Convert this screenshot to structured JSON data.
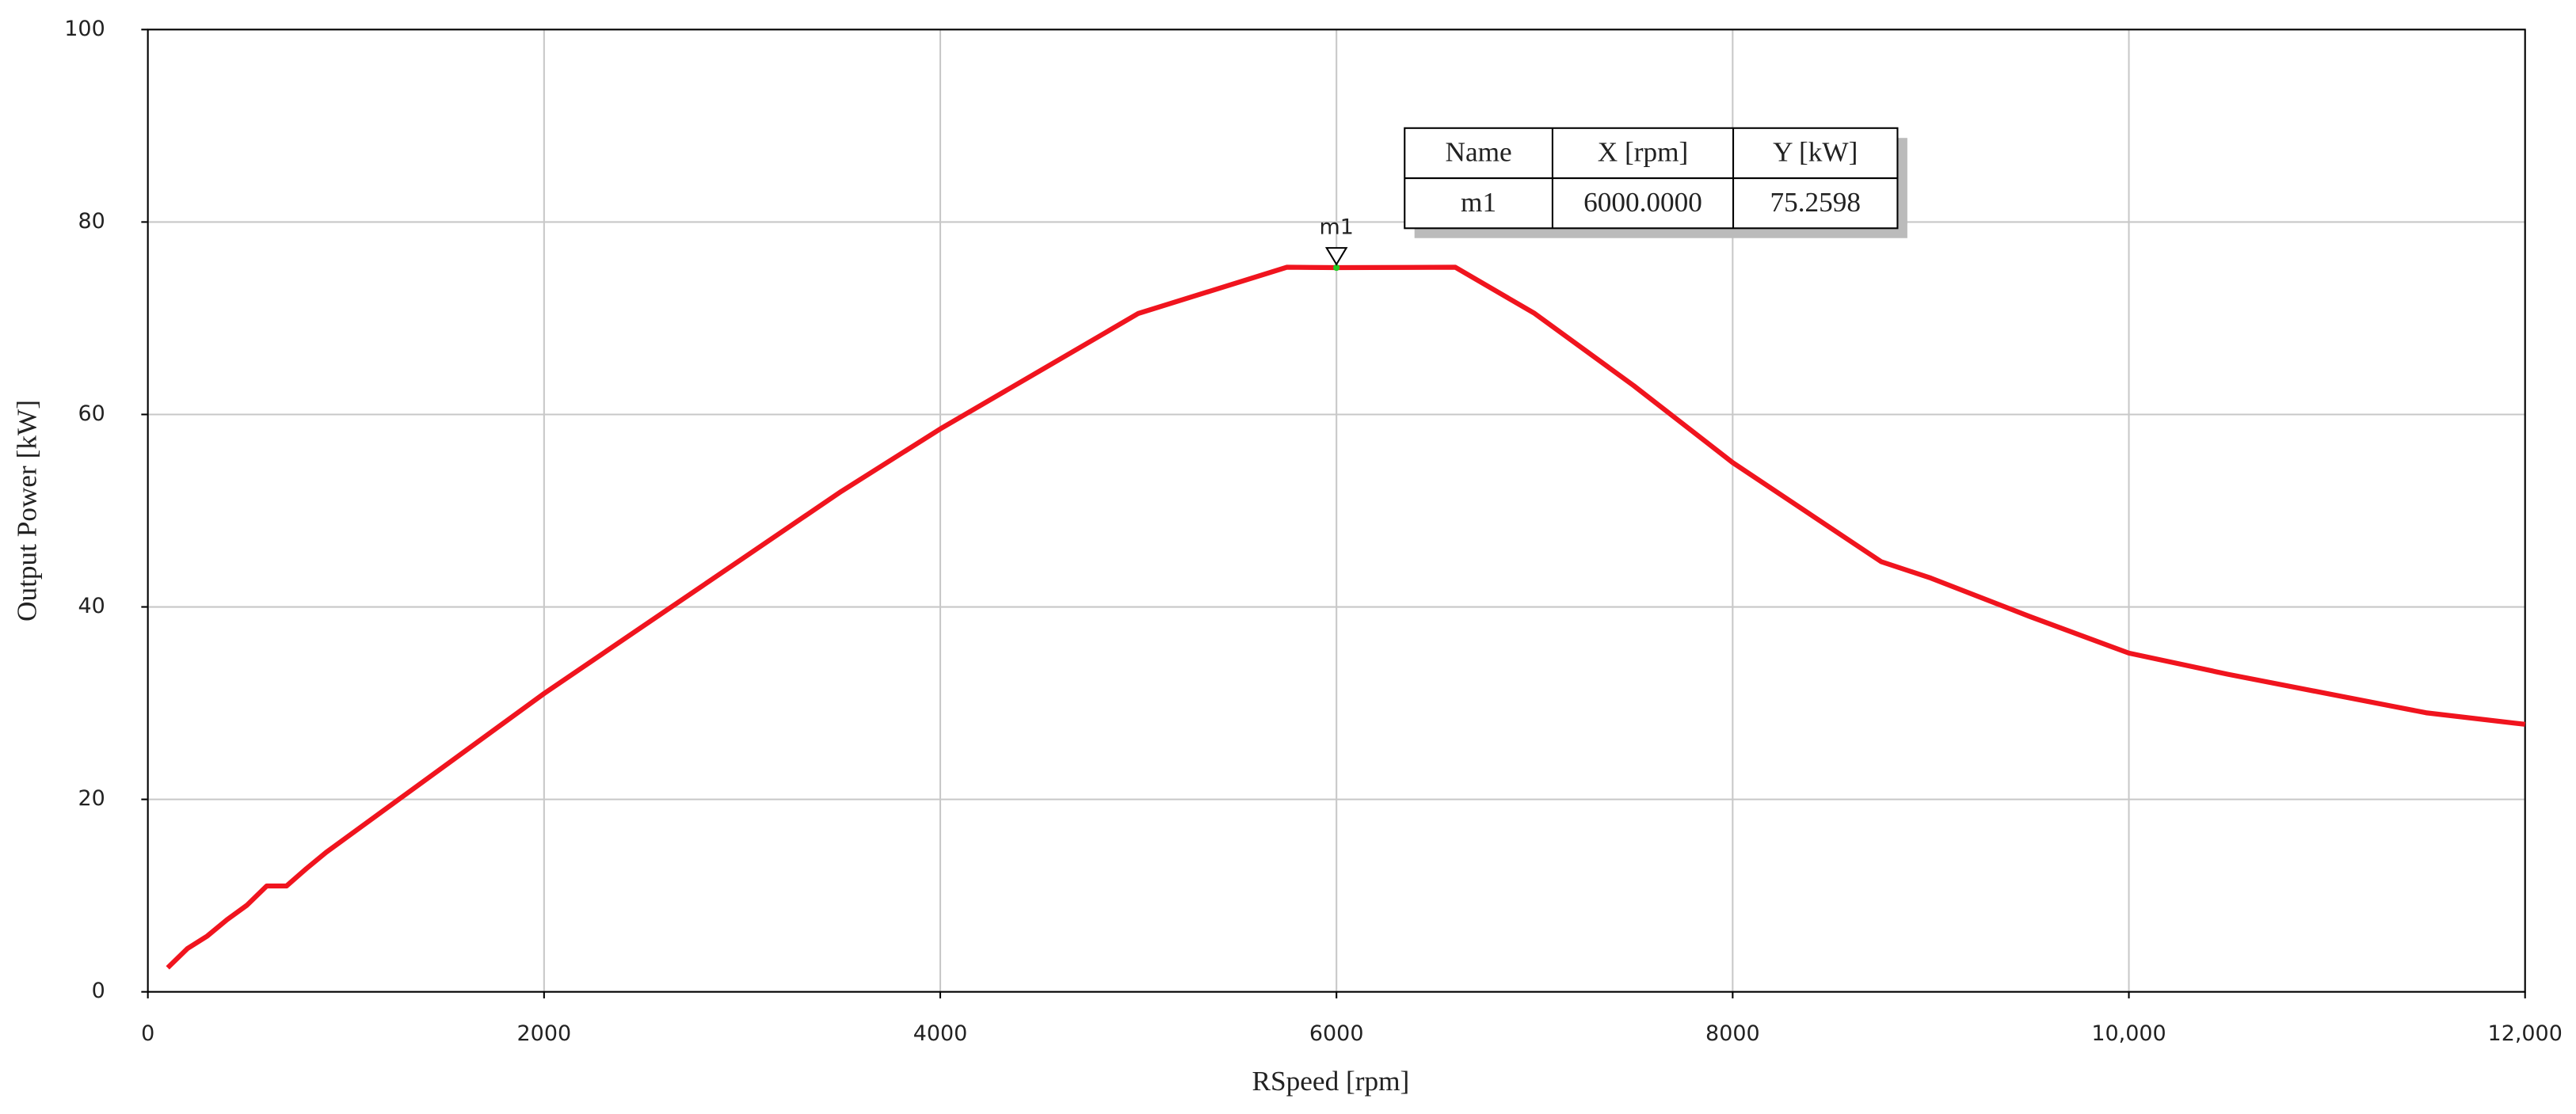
{
  "chart_data": {
    "type": "line",
    "x_label": "RSpeed [rpm]",
    "y_label": "Output Power [kW]",
    "x": [
      100,
      200,
      300,
      400,
      500,
      600,
      700,
      800,
      900,
      1000,
      1500,
      2000,
      2500,
      3000,
      3500,
      4000,
      4500,
      5000,
      5750,
      6000,
      6600,
      7000,
      7500,
      8000,
      8750,
      9000,
      9500,
      10000,
      10500,
      11000,
      11500,
      12000
    ],
    "series": [
      {
        "color": "#f0141e",
        "values": [
          2.5,
          4.5,
          5.8,
          7.5,
          9,
          11,
          11,
          12.8,
          14.5,
          16,
          23.5,
          31,
          38,
          45,
          52,
          58.5,
          64.5,
          70.5,
          75.3,
          75.2598,
          75.3,
          70.5,
          63,
          55,
          44.7,
          43,
          39,
          35.2,
          33,
          31,
          29,
          27.8
        ]
      }
    ],
    "xlim": [
      0,
      12000
    ],
    "ylim": [
      0,
      100
    ],
    "xticks": [
      0,
      2000,
      4000,
      6000,
      8000,
      {
        "value": 10000,
        "label": "10,000"
      },
      {
        "value": 12000,
        "label": "12,000"
      }
    ],
    "yticks": [
      0,
      20,
      40,
      60,
      80,
      100
    ],
    "grid": true,
    "markers": [
      {
        "name": "m1",
        "x": {
          "value": 6000,
          "label": "6000.0000"
        },
        "y": 75.2598,
        "color": "#22cc22"
      }
    ],
    "marker_table": {
      "columns": [
        "Name",
        "X [rpm]",
        "Y [kW]"
      ]
    }
  }
}
